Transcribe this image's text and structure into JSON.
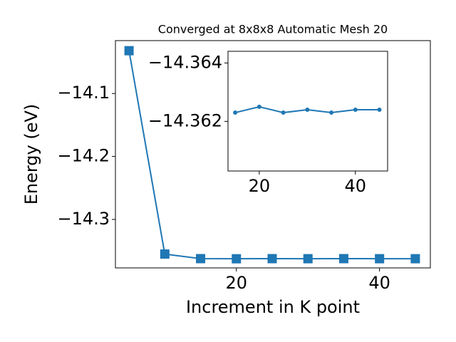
{
  "chart_data": [
    {
      "type": "line",
      "title": "Converged at 8x8x8 Automatic Mesh 20",
      "x_label": "Increment in K point",
      "y_label": "Energy (eV)",
      "x": [
        5,
        10,
        15,
        20,
        25,
        30,
        35,
        40,
        45
      ],
      "series": [
        {
          "color": "#1f77b4",
          "marker": "square",
          "values": [
            -14.032,
            -14.355,
            -14.3623,
            -14.3625,
            -14.3623,
            -14.3624,
            -14.3623,
            -14.3624,
            -14.3624
          ]
        }
      ],
      "xlim": [
        3.1,
        47.1
      ],
      "xticks": [
        20,
        40
      ],
      "ylim": [
        -14.377,
        -14.016
      ],
      "yticks": [
        {
          "value": -14.3,
          "label": "−14.3"
        },
        {
          "value": -14.2,
          "label": "−14.2"
        },
        {
          "value": -14.1,
          "label": "−14.1"
        }
      ]
    },
    {
      "type": "line",
      "x": [
        15,
        20,
        25,
        30,
        35,
        40,
        45
      ],
      "series": [
        {
          "color": "#1f77b4",
          "marker": "circle",
          "values": [
            -14.3623,
            -14.3625,
            -14.3623,
            -14.3624,
            -14.3623,
            -14.3624,
            -14.3624
          ]
        }
      ],
      "xlim": [
        13.5,
        46.7
      ],
      "xticks": [
        20,
        40
      ],
      "ylim": [
        -14.3603,
        -14.3644
      ],
      "yticks": [
        {
          "value": -14.362,
          "label": "−14.362"
        },
        {
          "value": -14.364,
          "label": "−14.364"
        }
      ]
    }
  ]
}
